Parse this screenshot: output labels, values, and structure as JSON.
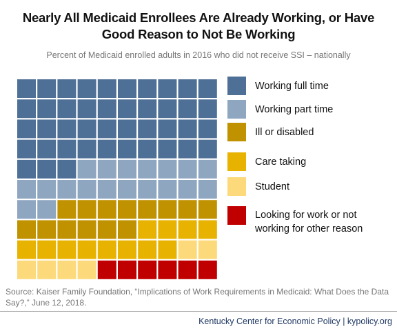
{
  "title": "Nearly All Medicaid Enrollees Are Already Working, or Have Good Reason to Not Be Working",
  "subtitle": "Percent of Medicaid enrolled adults in 2016 who did not receive SSI – nationally",
  "source": "Source: Kaiser Family Foundation, “Implications of Work Requirements in Medicaid: What Does the Data Say?,” June 12, 2018.",
  "credit": "Kentucky Center for Economic Policy | kypolicy.org",
  "chart_data": {
    "type": "waffle",
    "grid": {
      "rows": 10,
      "cols": 10
    },
    "fill_order": "rows top-to-bottom, left-to-right",
    "legend_position": "right",
    "categories": [
      {
        "name": "Working full time",
        "value": 43,
        "color": "#4e6f96"
      },
      {
        "name": "Working part time",
        "value": 19,
        "color": "#8fa6c1"
      },
      {
        "name": "Ill or disabled",
        "value": 14,
        "color": "#c09200"
      },
      {
        "name": "Care taking",
        "value": 12,
        "color": "#e8b200"
      },
      {
        "name": "Student",
        "value": 6,
        "color": "#fcd97a"
      },
      {
        "name": "Looking for work or not working for other reason",
        "value": 6,
        "color": "#c00000"
      }
    ]
  }
}
